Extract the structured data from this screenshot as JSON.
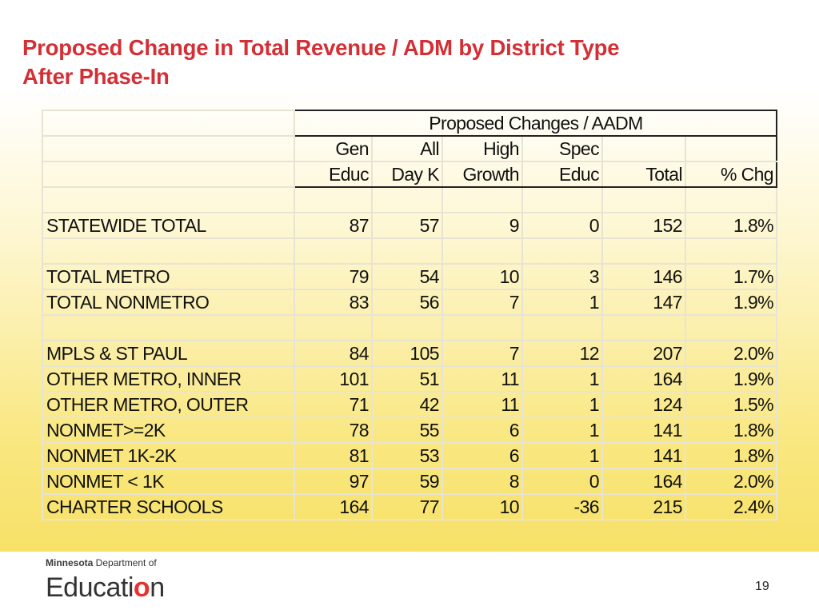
{
  "title": {
    "line1": "Proposed Change in Total Revenue / ADM  by District Type",
    "line2": "After Phase-In"
  },
  "table": {
    "group_header": "Proposed Changes / AADM",
    "columns": [
      {
        "top": "Gen",
        "bottom": "Educ"
      },
      {
        "top": "All",
        "bottom": "Day K"
      },
      {
        "top": "High",
        "bottom": "Growth"
      },
      {
        "top": "Spec",
        "bottom": "Educ"
      },
      {
        "top": "",
        "bottom": "Total"
      },
      {
        "top": "",
        "bottom": "% Chg"
      }
    ],
    "rows": [
      {
        "label": "STATEWIDE TOTAL",
        "values": [
          "87",
          "57",
          "9",
          "0",
          "152",
          "1.8%"
        ]
      },
      {
        "label": "TOTAL METRO",
        "values": [
          "79",
          "54",
          "10",
          "3",
          "146",
          "1.7%"
        ]
      },
      {
        "label": "TOTAL NONMETRO",
        "values": [
          "83",
          "56",
          "7",
          "1",
          "147",
          "1.9%"
        ]
      },
      {
        "label": "MPLS & ST PAUL",
        "values": [
          "84",
          "105",
          "7",
          "12",
          "207",
          "2.0%"
        ]
      },
      {
        "label": "OTHER METRO, INNER",
        "values": [
          "101",
          "51",
          "11",
          "1",
          "164",
          "1.9%"
        ]
      },
      {
        "label": "OTHER METRO, OUTER",
        "values": [
          "71",
          "42",
          "11",
          "1",
          "124",
          "1.5%"
        ]
      },
      {
        "label": "NONMET>=2K",
        "values": [
          "78",
          "55",
          "6",
          "1",
          "141",
          "1.8%"
        ]
      },
      {
        "label": "NONMET 1K-2K",
        "values": [
          "81",
          "53",
          "6",
          "1",
          "141",
          "1.8%"
        ]
      },
      {
        "label": "NONMET < 1K",
        "values": [
          "97",
          "59",
          "8",
          "0",
          "164",
          "2.0%"
        ]
      },
      {
        "label": "CHARTER SCHOOLS",
        "values": [
          "164",
          "77",
          "10",
          "-36",
          "215",
          "2.4%"
        ]
      }
    ]
  },
  "logo": {
    "org_bold": "Minnesota",
    "org_rest": " Department of",
    "word_pre": "Educati",
    "word_o": "o",
    "word_post": "n"
  },
  "page_number": "19"
}
